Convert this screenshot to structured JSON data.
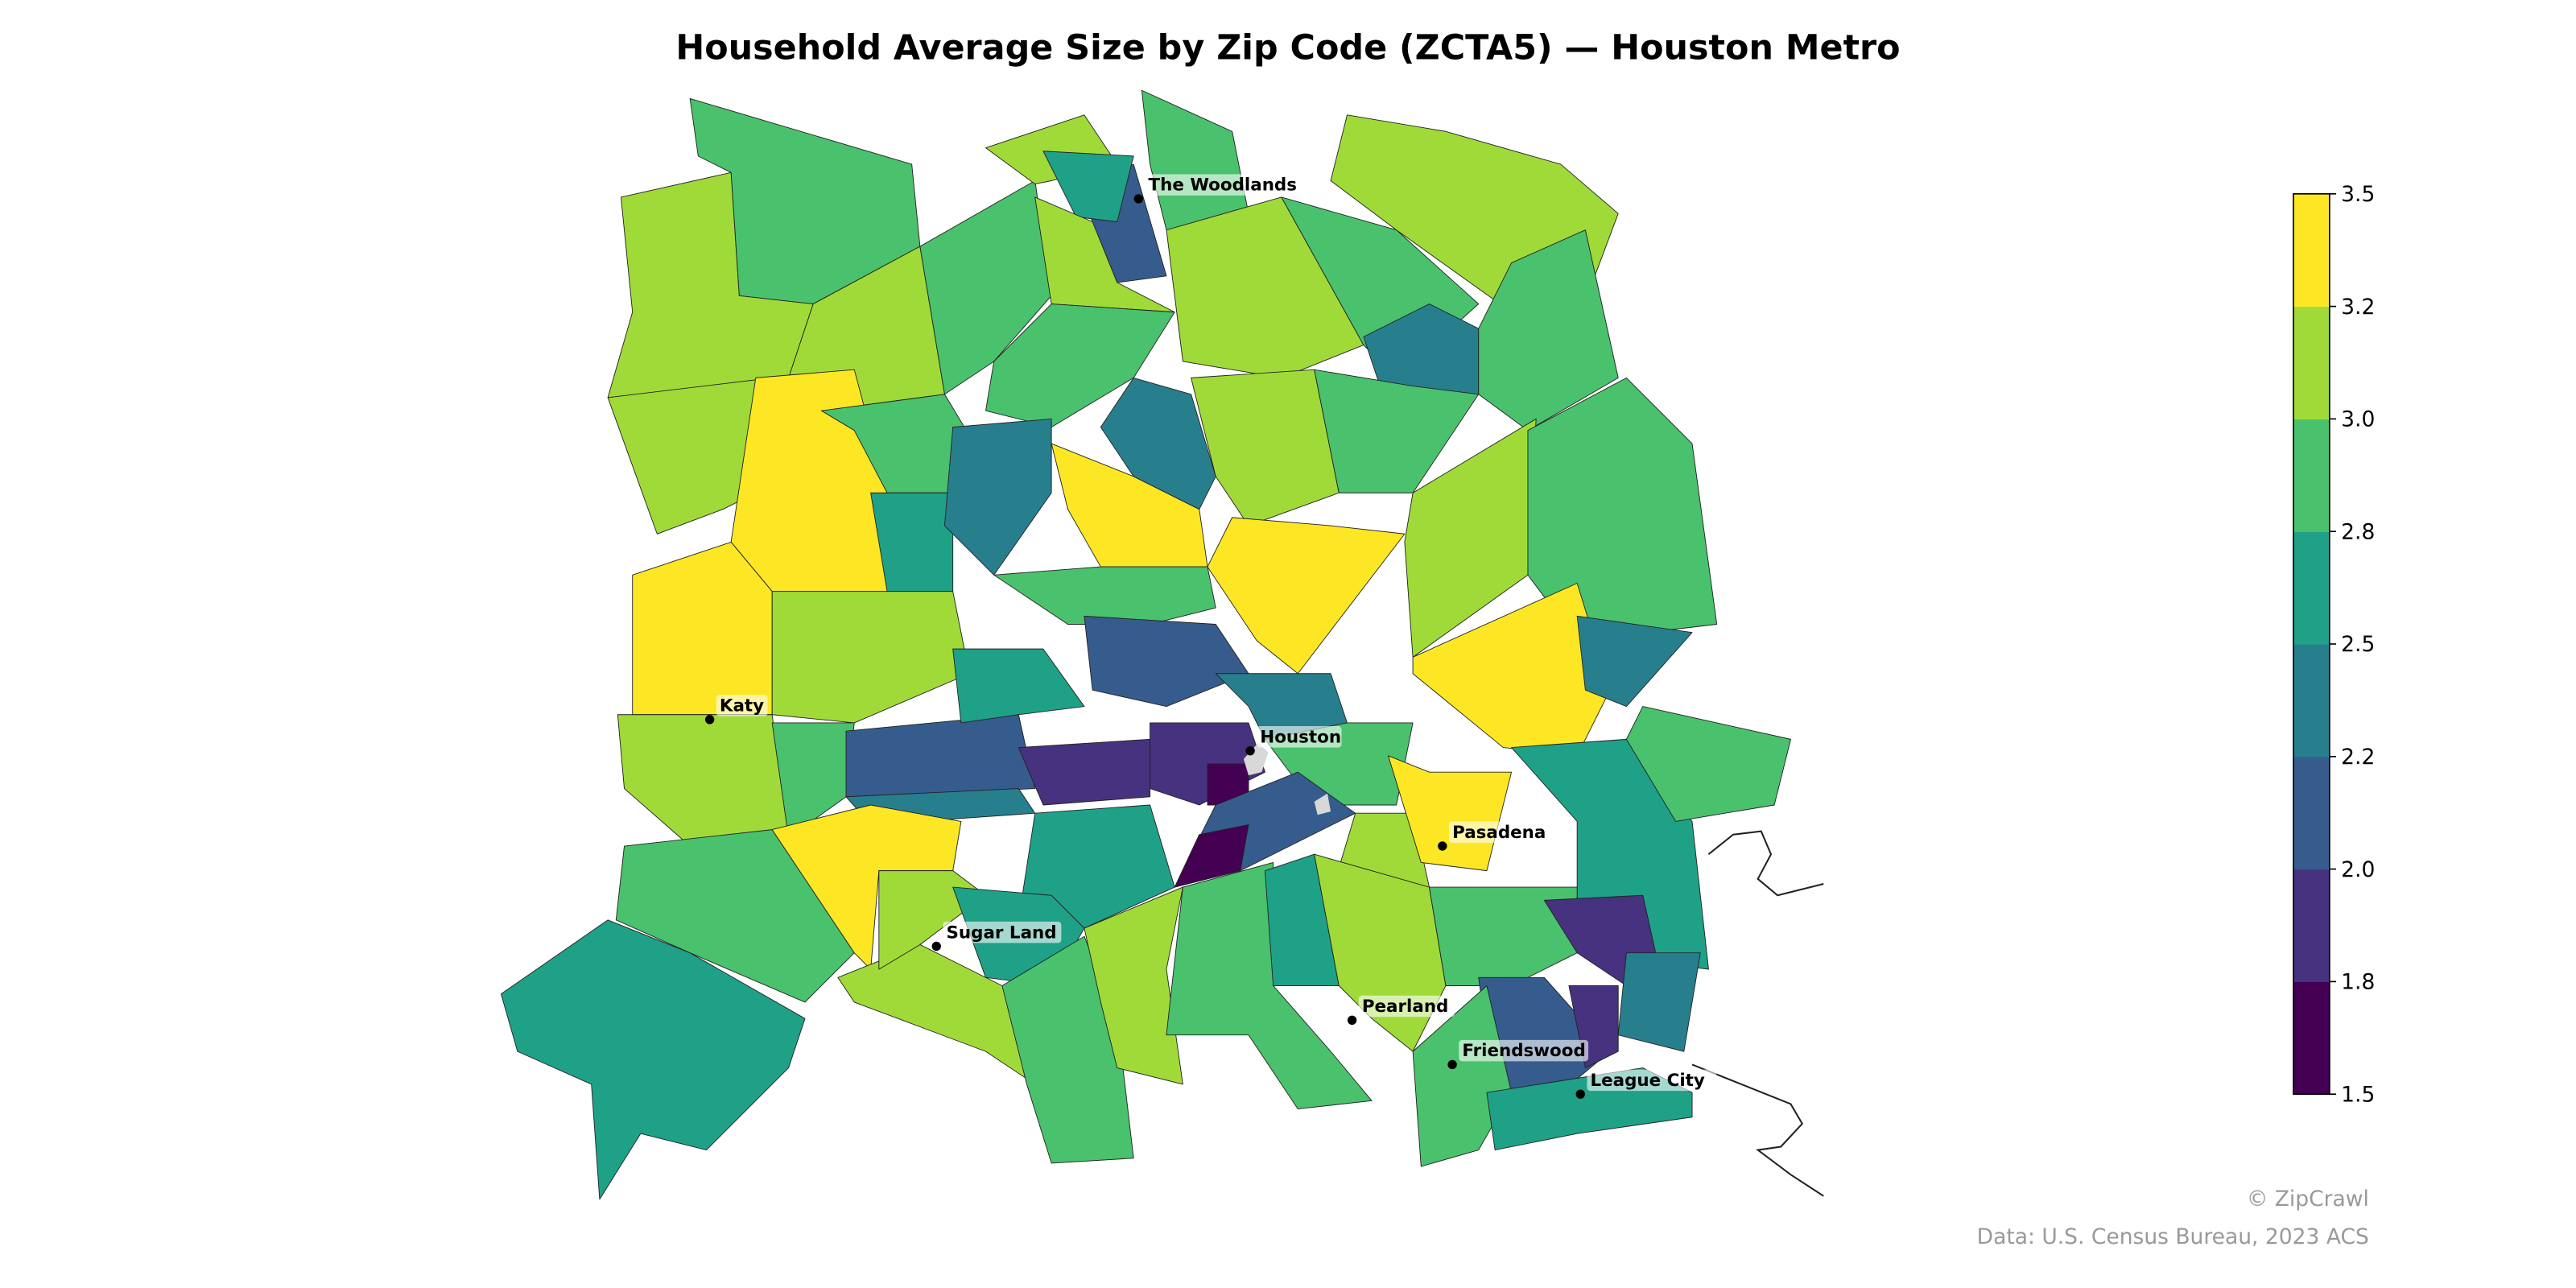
{
  "title": "Household Average Size by Zip Code (ZCTA5) — Houston Metro",
  "colorbar": {
    "ticks": [
      "3.5",
      "3.2",
      "3.0",
      "2.8",
      "2.5",
      "2.2",
      "2.0",
      "1.8",
      "1.5"
    ],
    "bin_colors": [
      "#440154",
      "#46327e",
      "#365c8d",
      "#277f8e",
      "#1fa187",
      "#4ac16d",
      "#a0da39",
      "#fde725"
    ],
    "bin_edges": [
      1.5,
      1.8,
      2.0,
      2.2,
      2.5,
      2.8,
      3.0,
      3.2,
      3.5
    ]
  },
  "places": [
    {
      "name": "The Woodlands"
    },
    {
      "name": "Katy"
    },
    {
      "name": "Houston"
    },
    {
      "name": "Pasadena"
    },
    {
      "name": "Sugar Land"
    },
    {
      "name": "Pearland"
    },
    {
      "name": "Friendswood"
    },
    {
      "name": "League City"
    }
  ],
  "region_values": [
    3.1,
    2.9,
    3.1,
    2.9,
    3.1,
    2.1,
    2.6,
    2.9,
    3.1,
    3.1,
    2.9,
    3.1,
    2.4,
    2.9,
    3.1,
    3.4,
    3.4,
    2.9,
    2.6,
    3.1,
    3.1,
    2.9,
    2.1,
    2.3,
    2.9,
    2.4,
    3.4,
    2.4,
    3.1,
    2.9,
    3.4,
    2.9,
    3.1,
    2.9,
    3.4,
    2.4,
    2.6,
    2.1,
    2.4,
    1.9,
    1.6,
    1.9,
    2.9,
    2.1,
    1.6,
    2.6,
    3.1,
    3.4,
    2.6,
    2.9,
    2.9,
    3.4,
    2.6,
    3.1,
    3.1,
    2.6,
    2.9,
    3.1,
    2.9,
    2.6,
    3.4,
    3.1,
    2.9,
    1.9,
    2.4,
    2.1,
    1.9,
    2.9,
    2.6
  ],
  "credits": {
    "brand": "© ZipCrawl",
    "source": "Data: U.S. Census Bureau, 2023 ACS"
  }
}
